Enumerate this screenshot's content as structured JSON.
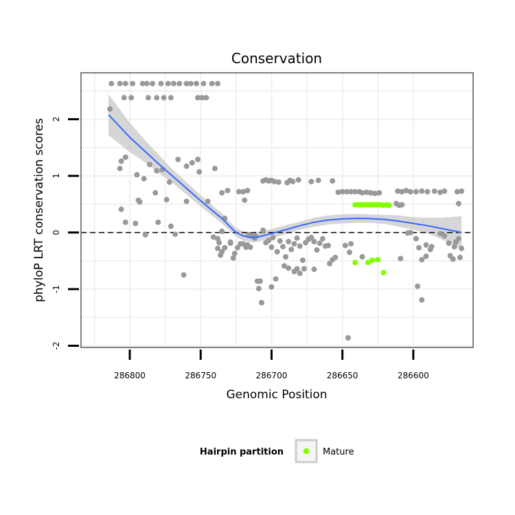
{
  "chart_data": {
    "type": "scatter",
    "title": "Conservation",
    "xlabel": "Genomic Position",
    "ylabel": "phyloP LRT conservation scores",
    "x_reversed": true,
    "xlim": [
      286834.4,
      286557.8
    ],
    "ylim": [
      -2.03,
      2.82
    ],
    "x_ticks": [
      286800,
      286750,
      286700,
      286650,
      286600
    ],
    "x_tick_labels": [
      "286800",
      "286750",
      "286700",
      "286650",
      "286600"
    ],
    "y_ticks": [
      -2,
      -1,
      0,
      1,
      2
    ],
    "y_tick_labels": [
      "-2",
      "-1",
      "0",
      "1",
      "2"
    ],
    "reference_line": {
      "y": 0,
      "style": "dashed"
    },
    "legend": {
      "title": "Hairpin partition",
      "entries": [
        {
          "label": "Mature",
          "color": "#7fff00"
        }
      ],
      "position": "bottom"
    },
    "colors": {
      "other": "#999999",
      "mature": "#7fff00",
      "smooth": "#3366ff",
      "band": "#c8c8c8",
      "panel_border": "#7f7f7f",
      "grid": "#f0f0f0"
    },
    "series": [
      {
        "name": "Other",
        "points": [
          [
            286813,
            2.63
          ],
          [
            286807,
            2.63
          ],
          [
            286803,
            2.63
          ],
          [
            286798,
            2.63
          ],
          [
            286791,
            2.63
          ],
          [
            286788,
            2.63
          ],
          [
            286784,
            2.63
          ],
          [
            286778,
            2.63
          ],
          [
            286773,
            2.63
          ],
          [
            286769,
            2.63
          ],
          [
            286765,
            2.63
          ],
          [
            286760,
            2.63
          ],
          [
            286757,
            2.63
          ],
          [
            286753,
            2.63
          ],
          [
            286748,
            2.63
          ],
          [
            286742,
            2.63
          ],
          [
            286738,
            2.63
          ],
          [
            286804,
            2.38
          ],
          [
            286799,
            2.38
          ],
          [
            286787,
            2.38
          ],
          [
            286781,
            2.38
          ],
          [
            286776,
            2.38
          ],
          [
            286771,
            2.38
          ],
          [
            286752,
            2.38
          ],
          [
            286749,
            2.38
          ],
          [
            286746,
            2.38
          ],
          [
            286814,
            2.18
          ],
          [
            286803,
            1.33
          ],
          [
            286806,
            1.26
          ],
          [
            286807,
            1.13
          ],
          [
            286786,
            1.2
          ],
          [
            286781,
            1.09
          ],
          [
            286777,
            1.11
          ],
          [
            286766,
            1.29
          ],
          [
            286760,
            1.17
          ],
          [
            286752,
            1.29
          ],
          [
            286756,
            1.23
          ],
          [
            286751,
            1.07
          ],
          [
            286740,
            1.13
          ],
          [
            286795,
            1.02
          ],
          [
            286790,
            0.95
          ],
          [
            286782,
            0.7
          ],
          [
            286772,
            0.89
          ],
          [
            286760,
            0.55
          ],
          [
            286745,
            0.55
          ],
          [
            286735,
            0.7
          ],
          [
            286731,
            0.74
          ],
          [
            286723,
            0.72
          ],
          [
            286720,
            0.72
          ],
          [
            286717,
            0.74
          ],
          [
            286719,
            0.57
          ],
          [
            286793,
            0.54
          ],
          [
            286794,
            0.57
          ],
          [
            286774,
            0.58
          ],
          [
            286806,
            0.41
          ],
          [
            286803,
            0.18
          ],
          [
            286796,
            0.16
          ],
          [
            286789,
            -0.04
          ],
          [
            286768,
            -0.03
          ],
          [
            286780,
            0.18
          ],
          [
            286771,
            0.11
          ],
          [
            286733,
            0.25
          ],
          [
            286735,
            0.02
          ],
          [
            286741,
            -0.08
          ],
          [
            286738,
            -0.11
          ],
          [
            286737,
            -0.18
          ],
          [
            286738,
            -0.28
          ],
          [
            286735,
            -0.34
          ],
          [
            286736,
            -0.4
          ],
          [
            286733,
            -0.27
          ],
          [
            286729,
            -0.17
          ],
          [
            286726,
            -0.37
          ],
          [
            286724,
            -0.27
          ],
          [
            286722,
            -0.2
          ],
          [
            286720,
            -0.2
          ],
          [
            286718,
            -0.26
          ],
          [
            286717,
            -0.22
          ],
          [
            286715,
            -0.26
          ],
          [
            286716,
            -0.04
          ],
          [
            286713,
            -0.05
          ],
          [
            286712,
            -0.1
          ],
          [
            286762,
            -0.75
          ],
          [
            286729,
            -0.19
          ],
          [
            286727,
            -0.45
          ],
          [
            286710,
            -0.86
          ],
          [
            286708,
            -0.86
          ],
          [
            286709,
            -0.99
          ],
          [
            286707,
            -1.24
          ],
          [
            286700,
            -0.96
          ],
          [
            286697,
            -0.82
          ],
          [
            286711,
            -0.07
          ],
          [
            286706,
            0.04
          ],
          [
            286704,
            -0.18
          ],
          [
            286702,
            -0.14
          ],
          [
            286700,
            -0.26
          ],
          [
            286699,
            -0.09
          ],
          [
            286696,
            -0.34
          ],
          [
            286694,
            -0.15
          ],
          [
            286692,
            -0.25
          ],
          [
            286690,
            -0.43
          ],
          [
            286688,
            -0.16
          ],
          [
            286686,
            -0.3
          ],
          [
            286684,
            -0.2
          ],
          [
            286682,
            -0.1
          ],
          [
            286680,
            -0.24
          ],
          [
            286678,
            -0.49
          ],
          [
            286676,
            -0.18
          ],
          [
            286674,
            -0.12
          ],
          [
            286672,
            -0.09
          ],
          [
            286670,
            -0.16
          ],
          [
            286668,
            -0.31
          ],
          [
            286666,
            -0.19
          ],
          [
            286664,
            -0.11
          ],
          [
            286662,
            -0.24
          ],
          [
            286660,
            -0.23
          ],
          [
            286659,
            -0.55
          ],
          [
            286657,
            -0.48
          ],
          [
            286655,
            -0.44
          ],
          [
            286691,
            -0.59
          ],
          [
            286688,
            -0.63
          ],
          [
            286684,
            -0.69
          ],
          [
            286682,
            -0.64
          ],
          [
            286680,
            -0.72
          ],
          [
            286677,
            -0.64
          ],
          [
            286670,
            -0.65
          ],
          [
            286706,
            0.91
          ],
          [
            286704,
            0.93
          ],
          [
            286702,
            0.91
          ],
          [
            286700,
            0.92
          ],
          [
            286698,
            0.9
          ],
          [
            286695,
            0.89
          ],
          [
            286689,
            0.88
          ],
          [
            286687,
            0.92
          ],
          [
            286685,
            0.9
          ],
          [
            286681,
            0.93
          ],
          [
            286672,
            0.9
          ],
          [
            286667,
            0.92
          ],
          [
            286657,
            0.91
          ],
          [
            286653,
            0.71
          ],
          [
            286650,
            0.72
          ],
          [
            286647,
            0.72
          ],
          [
            286644,
            0.72
          ],
          [
            286641,
            0.72
          ],
          [
            286638,
            0.72
          ],
          [
            286636,
            0.7
          ],
          [
            286633,
            0.71
          ],
          [
            286630,
            0.7
          ],
          [
            286627,
            0.69
          ],
          [
            286624,
            0.7
          ],
          [
            286648,
            -0.23
          ],
          [
            286644,
            -0.2
          ],
          [
            286645,
            -0.35
          ],
          [
            286646,
            -1.86
          ],
          [
            286636,
            -0.43
          ],
          [
            286611,
            0.73
          ],
          [
            286608,
            0.72
          ],
          [
            286605,
            0.74
          ],
          [
            286602,
            0.72
          ],
          [
            286598,
            0.72
          ],
          [
            286594,
            0.73
          ],
          [
            286590,
            0.72
          ],
          [
            286585,
            0.73
          ],
          [
            286581,
            0.71
          ],
          [
            286578,
            0.73
          ],
          [
            286569,
            0.72
          ],
          [
            286566,
            0.73
          ],
          [
            286612,
            0.51
          ],
          [
            286608,
            0.49
          ],
          [
            286610,
            0.48
          ],
          [
            286609,
            -0.46
          ],
          [
            286604,
            -0.01
          ],
          [
            286602,
            0.0
          ],
          [
            286598,
            -0.11
          ],
          [
            286596,
            -0.27
          ],
          [
            286594,
            -0.48
          ],
          [
            286591,
            -0.22
          ],
          [
            286597,
            -0.95
          ],
          [
            286594,
            -1.19
          ],
          [
            286591,
            -0.42
          ],
          [
            286588,
            -0.3
          ],
          [
            286587,
            -0.25
          ],
          [
            286581,
            -0.02
          ],
          [
            286578,
            -0.06
          ],
          [
            286575,
            -0.19
          ],
          [
            286574,
            -0.41
          ],
          [
            286572,
            -0.47
          ],
          [
            286571,
            -0.25
          ],
          [
            286570,
            -0.17
          ],
          [
            286568,
            -0.11
          ],
          [
            286568,
            0.51
          ],
          [
            286566,
            -0.28
          ],
          [
            286567,
            -0.44
          ]
        ]
      },
      {
        "name": "Mature",
        "points": [
          [
            286641,
            0.49
          ],
          [
            286639,
            0.49
          ],
          [
            286637,
            0.49
          ],
          [
            286635,
            0.49
          ],
          [
            286633,
            0.49
          ],
          [
            286631,
            0.49
          ],
          [
            286629,
            0.49
          ],
          [
            286627,
            0.49
          ],
          [
            286625,
            0.49
          ],
          [
            286623,
            0.49
          ],
          [
            286621,
            0.48
          ],
          [
            286619,
            0.49
          ],
          [
            286617,
            0.48
          ],
          [
            286641,
            -0.53
          ],
          [
            286632,
            -0.53
          ],
          [
            286629,
            -0.49
          ],
          [
            286625,
            -0.48
          ],
          [
            286621,
            -0.71
          ]
        ]
      }
    ],
    "smooth_line": {
      "x": [
        286815,
        286800,
        286790,
        286780,
        286770,
        286760,
        286750,
        286740,
        286735,
        286730,
        286725,
        286720,
        286715,
        286710,
        286700,
        286690,
        286680,
        286670,
        286660,
        286650,
        286640,
        286630,
        286620,
        286610,
        286600,
        286590,
        286580,
        286570,
        286566
      ],
      "y": [
        2.08,
        1.68,
        1.45,
        1.22,
        1.0,
        0.78,
        0.56,
        0.35,
        0.25,
        0.12,
        0.0,
        -0.06,
        -0.09,
        -0.08,
        -0.02,
        0.05,
        0.12,
        0.18,
        0.22,
        0.24,
        0.25,
        0.245,
        0.23,
        0.2,
        0.16,
        0.12,
        0.07,
        0.02,
        0.0
      ],
      "lower": [
        1.72,
        1.42,
        1.25,
        1.06,
        0.88,
        0.67,
        0.46,
        0.26,
        0.16,
        0.04,
        -0.07,
        -0.14,
        -0.17,
        -0.17,
        -0.1,
        -0.03,
        0.05,
        0.1,
        0.14,
        0.16,
        0.17,
        0.17,
        0.15,
        0.1,
        0.05,
        -0.02,
        -0.12,
        -0.24,
        -0.29
      ],
      "upper": [
        2.44,
        1.94,
        1.65,
        1.38,
        1.12,
        0.89,
        0.66,
        0.44,
        0.34,
        0.2,
        0.08,
        0.02,
        -0.01,
        0.01,
        0.06,
        0.13,
        0.19,
        0.26,
        0.3,
        0.32,
        0.33,
        0.32,
        0.31,
        0.3,
        0.27,
        0.26,
        0.26,
        0.28,
        0.29
      ]
    }
  }
}
